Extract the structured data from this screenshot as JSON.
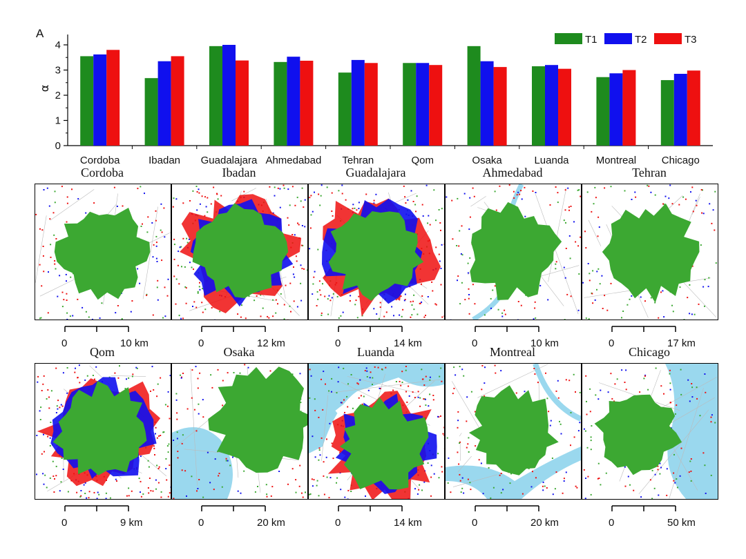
{
  "colors": {
    "T1": "#1e8b1e",
    "T2": "#1010ee",
    "T3": "#ee1010",
    "water": "#9ad8ee",
    "urban": "#3ca832"
  },
  "chart_data": {
    "type": "bar",
    "panel_label": "A",
    "ylabel": "α",
    "ylim": [
      0,
      4
    ],
    "yticks": [
      "0",
      "1",
      "2",
      "3",
      "4"
    ],
    "categories": [
      "Cordoba",
      "Ibadan",
      "Guadalajara",
      "Ahmedabad",
      "Tehran",
      "Qom",
      "Osaka",
      "Luanda",
      "Montreal",
      "Chicago"
    ],
    "series": [
      {
        "name": "T1",
        "values": [
          3.55,
          2.68,
          3.95,
          3.32,
          2.9,
          3.28,
          3.95,
          3.15,
          2.72,
          2.6
        ]
      },
      {
        "name": "T2",
        "values": [
          3.62,
          3.35,
          4.0,
          3.53,
          3.4,
          3.28,
          3.35,
          3.2,
          2.87,
          2.85
        ]
      },
      {
        "name": "T3",
        "values": [
          3.8,
          3.55,
          3.38,
          3.37,
          3.28,
          3.2,
          3.12,
          3.05,
          3.0,
          2.98
        ]
      }
    ],
    "legend_position": "top-right"
  },
  "maps": [
    {
      "city": "Cordoba",
      "scale_start": "0",
      "scale_end": "10 km",
      "style": "green"
    },
    {
      "city": "Ibadan",
      "scale_start": "0",
      "scale_end": "12 km",
      "style": "mixed"
    },
    {
      "city": "Guadalajara",
      "scale_start": "0",
      "scale_end": "14 km",
      "style": "mixed"
    },
    {
      "city": "Ahmedabad",
      "scale_start": "0",
      "scale_end": "10 km",
      "style": "river"
    },
    {
      "city": "Tehran",
      "scale_start": "0",
      "scale_end": "17 km",
      "style": "green"
    },
    {
      "city": "Qom",
      "scale_start": "0",
      "scale_end": "9 km",
      "style": "mixed"
    },
    {
      "city": "Osaka",
      "scale_start": "0",
      "scale_end": "20 km",
      "style": "bay"
    },
    {
      "city": "Luanda",
      "scale_start": "0",
      "scale_end": "14 km",
      "style": "coast"
    },
    {
      "city": "Montreal",
      "scale_start": "0",
      "scale_end": "20 km",
      "style": "island"
    },
    {
      "city": "Chicago",
      "scale_start": "0",
      "scale_end": "50 km",
      "style": "lake"
    }
  ]
}
